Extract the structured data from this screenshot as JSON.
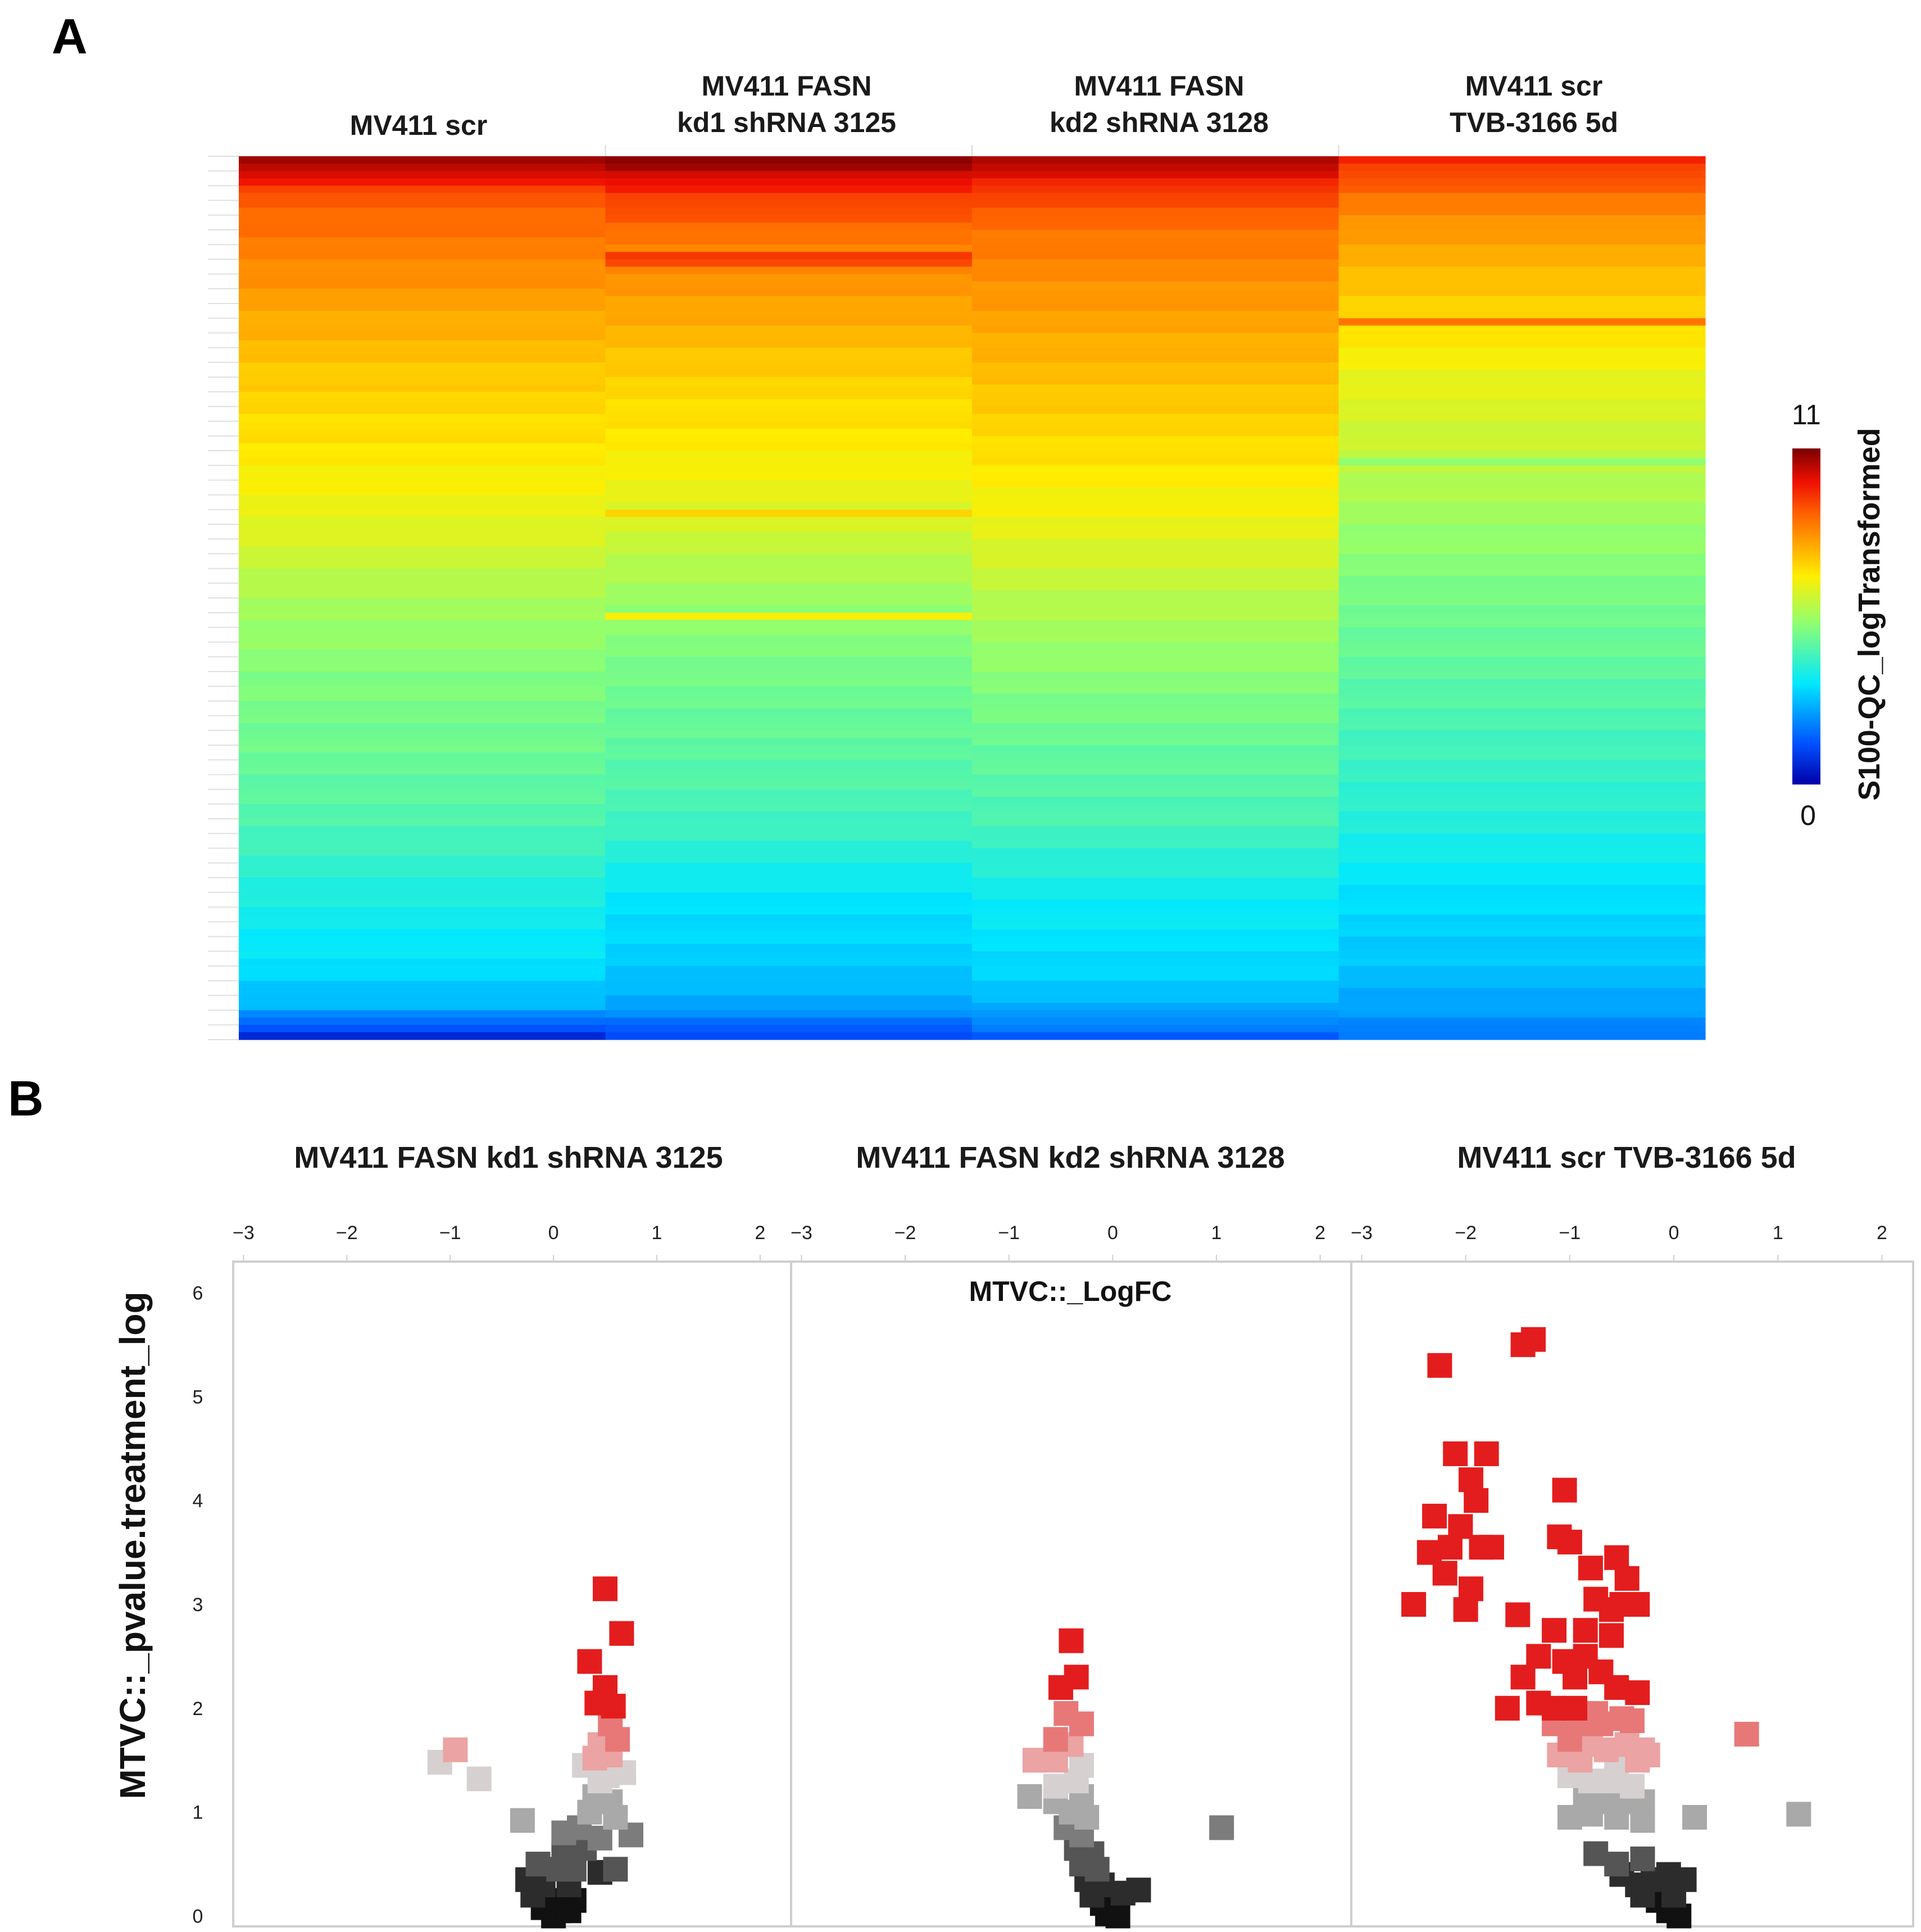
{
  "panel_a": {
    "letter": "A",
    "columns": [
      {
        "line1": "",
        "line2": "MV411 scr"
      },
      {
        "line1": "MV411 FASN",
        "line2": "kd1 shRNA 3125"
      },
      {
        "line1": "MV411 FASN",
        "line2": "kd2 shRNA 3128"
      },
      {
        "line1": "MV411 scr",
        "line2": "TVB-3166 5d"
      }
    ],
    "colorbar": {
      "max_label": "11",
      "min_label": "0",
      "title": "S100-QC_logTransformed"
    }
  },
  "panel_b": {
    "letter": "B",
    "panel_titles": [
      "MV411 FASN kd1 shRNA 3125",
      "MV411 FASN kd2 shRNA 3128",
      "MV411 scr TVB-3166 5d"
    ],
    "x_title": "MTVC::_LogFC",
    "y_title": "MTVC::_pvalue.treatment_log",
    "x_ticks": [
      "−3",
      "−2",
      "−1",
      "0",
      "1",
      "2"
    ],
    "y_ticks": [
      "0",
      "1",
      "2",
      "3",
      "4",
      "5",
      "6"
    ]
  },
  "chart_data": [
    {
      "type": "heatmap",
      "title": "",
      "columns": [
        "MV411 scr",
        "MV411 FASN kd1 shRNA 3125",
        "MV411 FASN kd2 shRNA 3128",
        "MV411 scr TVB-3166 5d"
      ],
      "value_range": [
        0,
        11
      ],
      "colorbar_label": "S100-QC_logTransformed",
      "n_rows": 120,
      "anchor_rows": [
        0,
        5,
        10,
        20,
        30,
        40,
        50,
        60,
        70,
        80,
        90,
        100,
        110,
        115,
        119
      ],
      "anchor_values": [
        [
          10.8,
          9.0,
          8.6,
          7.9,
          7.3,
          6.9,
          6.4,
          5.6,
          5.1,
          4.8,
          4.4,
          3.7,
          3.2,
          2.6,
          0.8
        ],
        [
          10.8,
          9.4,
          8.6,
          7.9,
          7.2,
          6.8,
          6.2,
          5.4,
          4.9,
          4.6,
          4.2,
          3.3,
          2.9,
          2.4,
          1.2
        ],
        [
          10.6,
          9.2,
          8.6,
          8.0,
          7.5,
          7.0,
          6.5,
          5.8,
          5.2,
          4.7,
          4.3,
          3.5,
          3.1,
          2.6,
          1.5
        ],
        [
          9.6,
          8.6,
          8.0,
          7.2,
          6.5,
          6.0,
          5.4,
          4.9,
          4.6,
          4.2,
          3.8,
          3.2,
          2.8,
          2.4,
          1.8
        ]
      ],
      "highlight_rows": [
        {
          "column": 1,
          "row": 13,
          "value": 9.4
        },
        {
          "column": 1,
          "row": 14,
          "value": 9.2
        },
        {
          "column": 1,
          "row": 48,
          "value": 7.2
        },
        {
          "column": 1,
          "row": 62,
          "value": 6.7
        },
        {
          "column": 3,
          "row": 22,
          "value": 8.6
        },
        {
          "column": 3,
          "row": 41,
          "value": 5.3
        }
      ]
    },
    {
      "type": "scatter",
      "panels": [
        "MV411 FASN kd1 shRNA 3125",
        "MV411 FASN kd2 shRNA 3128",
        "MV411 scr TVB-3166 5d"
      ],
      "xlabel": "MTVC::_LogFC",
      "ylabel": "MTVC::_pvalue.treatment_log",
      "xlim": [
        -3.1,
        2.3
      ],
      "ylim": [
        -0.1,
        6.3
      ],
      "color_rule": "y >= 2 red; 1.5-2 pink; 1.2-1.5 light grey; 0.7-1.2 grey; below 0.7 dark to black",
      "series": [
        {
          "name": "MV411 FASN kd1 shRNA 3125",
          "points": [
            [
              0.5,
              3.15
            ],
            [
              0.66,
              2.72
            ],
            [
              0.35,
              2.45
            ],
            [
              0.5,
              2.2
            ],
            [
              0.42,
              2.05
            ],
            [
              0.58,
              2.02
            ],
            [
              0.55,
              1.85
            ],
            [
              0.62,
              1.7
            ],
            [
              0.45,
              1.65
            ],
            [
              0.55,
              1.55
            ],
            [
              0.4,
              1.52
            ],
            [
              -0.95,
              1.6
            ],
            [
              -1.1,
              1.48
            ],
            [
              -0.72,
              1.32
            ],
            [
              0.3,
              1.45
            ],
            [
              0.68,
              1.38
            ],
            [
              0.52,
              1.35
            ],
            [
              0.45,
              1.3
            ],
            [
              0.4,
              1.15
            ],
            [
              0.55,
              1.1
            ],
            [
              0.35,
              1.0
            ],
            [
              -0.3,
              0.92
            ],
            [
              0.6,
              0.95
            ],
            [
              0.25,
              0.85
            ],
            [
              0.1,
              0.8
            ],
            [
              0.45,
              0.75
            ],
            [
              0.75,
              0.78
            ],
            [
              0.3,
              0.65
            ],
            [
              0.1,
              0.6
            ],
            [
              -0.15,
              0.5
            ],
            [
              0.05,
              0.45
            ],
            [
              0.2,
              0.45
            ],
            [
              0.45,
              0.42
            ],
            [
              0.6,
              0.45
            ],
            [
              -0.25,
              0.35
            ],
            [
              -0.1,
              0.3
            ],
            [
              0.15,
              0.3
            ],
            [
              -0.2,
              0.2
            ],
            [
              0.0,
              0.15
            ],
            [
              0.2,
              0.15
            ],
            [
              -0.1,
              0.08
            ],
            [
              0.05,
              0.05
            ],
            [
              0.15,
              0.05
            ],
            [
              0.0,
              0.0
            ]
          ]
        },
        {
          "name": "MV411 FASN kd2 shRNA 3128",
          "points": [
            [
              -0.4,
              2.65
            ],
            [
              -0.35,
              2.3
            ],
            [
              -0.5,
              2.2
            ],
            [
              -0.45,
              1.95
            ],
            [
              -0.3,
              1.85
            ],
            [
              -0.55,
              1.7
            ],
            [
              -0.4,
              1.65
            ],
            [
              -0.75,
              1.5
            ],
            [
              -0.55,
              1.5
            ],
            [
              -0.3,
              1.45
            ],
            [
              -0.8,
              1.15
            ],
            [
              -0.55,
              1.25
            ],
            [
              -0.35,
              1.3
            ],
            [
              -0.3,
              1.15
            ],
            [
              -0.55,
              1.1
            ],
            [
              -0.4,
              1.0
            ],
            [
              -0.25,
              0.95
            ],
            [
              -0.45,
              0.85
            ],
            [
              -0.3,
              0.78
            ],
            [
              1.05,
              0.85
            ],
            [
              -0.35,
              0.65
            ],
            [
              -0.2,
              0.6
            ],
            [
              -0.3,
              0.5
            ],
            [
              -0.15,
              0.45
            ],
            [
              -0.25,
              0.35
            ],
            [
              -0.1,
              0.3
            ],
            [
              -0.2,
              0.2
            ],
            [
              0.1,
              0.22
            ],
            [
              0.25,
              0.25
            ],
            [
              -0.1,
              0.12
            ],
            [
              0.0,
              0.1
            ],
            [
              -0.05,
              0.02
            ],
            [
              0.05,
              0.0
            ]
          ]
        },
        {
          "name": "MV411 scr TVB-3166 5d",
          "points": [
            [
              -1.45,
              5.5
            ],
            [
              -1.35,
              5.55
            ],
            [
              -2.25,
              5.3
            ],
            [
              -2.1,
              4.45
            ],
            [
              -1.8,
              4.45
            ],
            [
              -1.95,
              4.2
            ],
            [
              -1.9,
              4.0
            ],
            [
              -2.3,
              3.85
            ],
            [
              -2.05,
              3.75
            ],
            [
              -2.35,
              3.5
            ],
            [
              -2.15,
              3.55
            ],
            [
              -2.2,
              3.3
            ],
            [
              -1.95,
              3.15
            ],
            [
              -2.5,
              3.0
            ],
            [
              -1.85,
              3.55
            ],
            [
              -1.75,
              3.55
            ],
            [
              -2.0,
              2.95
            ],
            [
              -1.05,
              4.1
            ],
            [
              -1.1,
              3.65
            ],
            [
              -1.0,
              3.6
            ],
            [
              -0.8,
              3.35
            ],
            [
              -0.55,
              3.45
            ],
            [
              -0.45,
              3.25
            ],
            [
              -0.35,
              3.0
            ],
            [
              -0.5,
              3.0
            ],
            [
              -0.75,
              3.05
            ],
            [
              -0.6,
              2.95
            ],
            [
              -1.15,
              2.75
            ],
            [
              -1.5,
              2.9
            ],
            [
              -0.85,
              2.75
            ],
            [
              -0.6,
              2.7
            ],
            [
              -1.3,
              2.5
            ],
            [
              -1.05,
              2.45
            ],
            [
              -0.85,
              2.5
            ],
            [
              -0.7,
              2.35
            ],
            [
              -0.95,
              2.3
            ],
            [
              -1.45,
              2.3
            ],
            [
              -0.35,
              2.15
            ],
            [
              -0.55,
              2.2
            ],
            [
              -1.3,
              2.05
            ],
            [
              -1.15,
              2.0
            ],
            [
              -0.95,
              2.0
            ],
            [
              -0.75,
              1.95
            ],
            [
              -1.6,
              2.0
            ],
            [
              -1.15,
              1.85
            ],
            [
              -1.0,
              1.9
            ],
            [
              -0.85,
              1.85
            ],
            [
              -0.7,
              1.85
            ],
            [
              -0.5,
              1.9
            ],
            [
              -0.4,
              1.88
            ],
            [
              0.7,
              1.75
            ],
            [
              -1.0,
              1.7
            ],
            [
              -0.8,
              1.65
            ],
            [
              -0.65,
              1.6
            ],
            [
              -0.45,
              1.65
            ],
            [
              -0.3,
              1.6
            ],
            [
              -1.1,
              1.55
            ],
            [
              -0.9,
              1.5
            ],
            [
              -0.55,
              1.45
            ],
            [
              -0.35,
              1.5
            ],
            [
              -0.25,
              1.55
            ],
            [
              -1.0,
              1.35
            ],
            [
              -0.8,
              1.3
            ],
            [
              -0.6,
              1.3
            ],
            [
              -0.4,
              1.25
            ],
            [
              -0.85,
              1.15
            ],
            [
              -0.65,
              1.1
            ],
            [
              -0.45,
              1.1
            ],
            [
              -0.3,
              1.1
            ],
            [
              -0.8,
              0.98
            ],
            [
              -0.55,
              0.95
            ],
            [
              -1.0,
              0.95
            ],
            [
              -0.3,
              0.92
            ],
            [
              0.2,
              0.95
            ],
            [
              1.2,
              0.98
            ],
            [
              -0.75,
              0.6
            ],
            [
              -0.55,
              0.5
            ],
            [
              -0.3,
              0.55
            ],
            [
              -0.5,
              0.4
            ],
            [
              -0.35,
              0.3
            ],
            [
              -0.2,
              0.35
            ],
            [
              -0.05,
              0.4
            ],
            [
              0.1,
              0.35
            ],
            [
              -0.3,
              0.2
            ],
            [
              -0.15,
              0.15
            ],
            [
              0.0,
              0.2
            ],
            [
              -0.05,
              0.05
            ],
            [
              0.05,
              0.0
            ]
          ]
        }
      ]
    }
  ]
}
